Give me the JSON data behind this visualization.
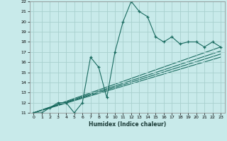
{
  "title": "",
  "xlabel": "Humidex (Indice chaleur)",
  "bg_color": "#c8eaea",
  "grid_color": "#a8d0ce",
  "line_color": "#1a6b60",
  "xlim": [
    -0.5,
    23.5
  ],
  "ylim": [
    11,
    22
  ],
  "xticks": [
    0,
    1,
    2,
    3,
    4,
    5,
    6,
    7,
    8,
    9,
    10,
    11,
    12,
    13,
    14,
    15,
    16,
    17,
    18,
    19,
    20,
    21,
    22,
    23
  ],
  "yticks": [
    11,
    12,
    13,
    14,
    15,
    16,
    17,
    18,
    19,
    20,
    21,
    22
  ],
  "data_x": [
    0,
    1,
    2,
    3,
    4,
    5,
    6,
    7,
    8,
    9,
    10,
    11,
    12,
    13,
    14,
    15,
    16,
    17,
    18,
    19,
    20,
    21,
    22,
    23
  ],
  "data_y": [
    11,
    11,
    11.5,
    12,
    12,
    11,
    12,
    16.5,
    15.5,
    12.5,
    17,
    20,
    22,
    21,
    20.5,
    18.5,
    18,
    18.5,
    17.8,
    18,
    18,
    17.5,
    18,
    17.5
  ],
  "line1_end_y": 17.5,
  "line2_end_y": 16.5,
  "line3_end_y": 17.1,
  "line4_end_y": 16.8,
  "start_x": 0,
  "start_y": 11,
  "end_x": 23
}
